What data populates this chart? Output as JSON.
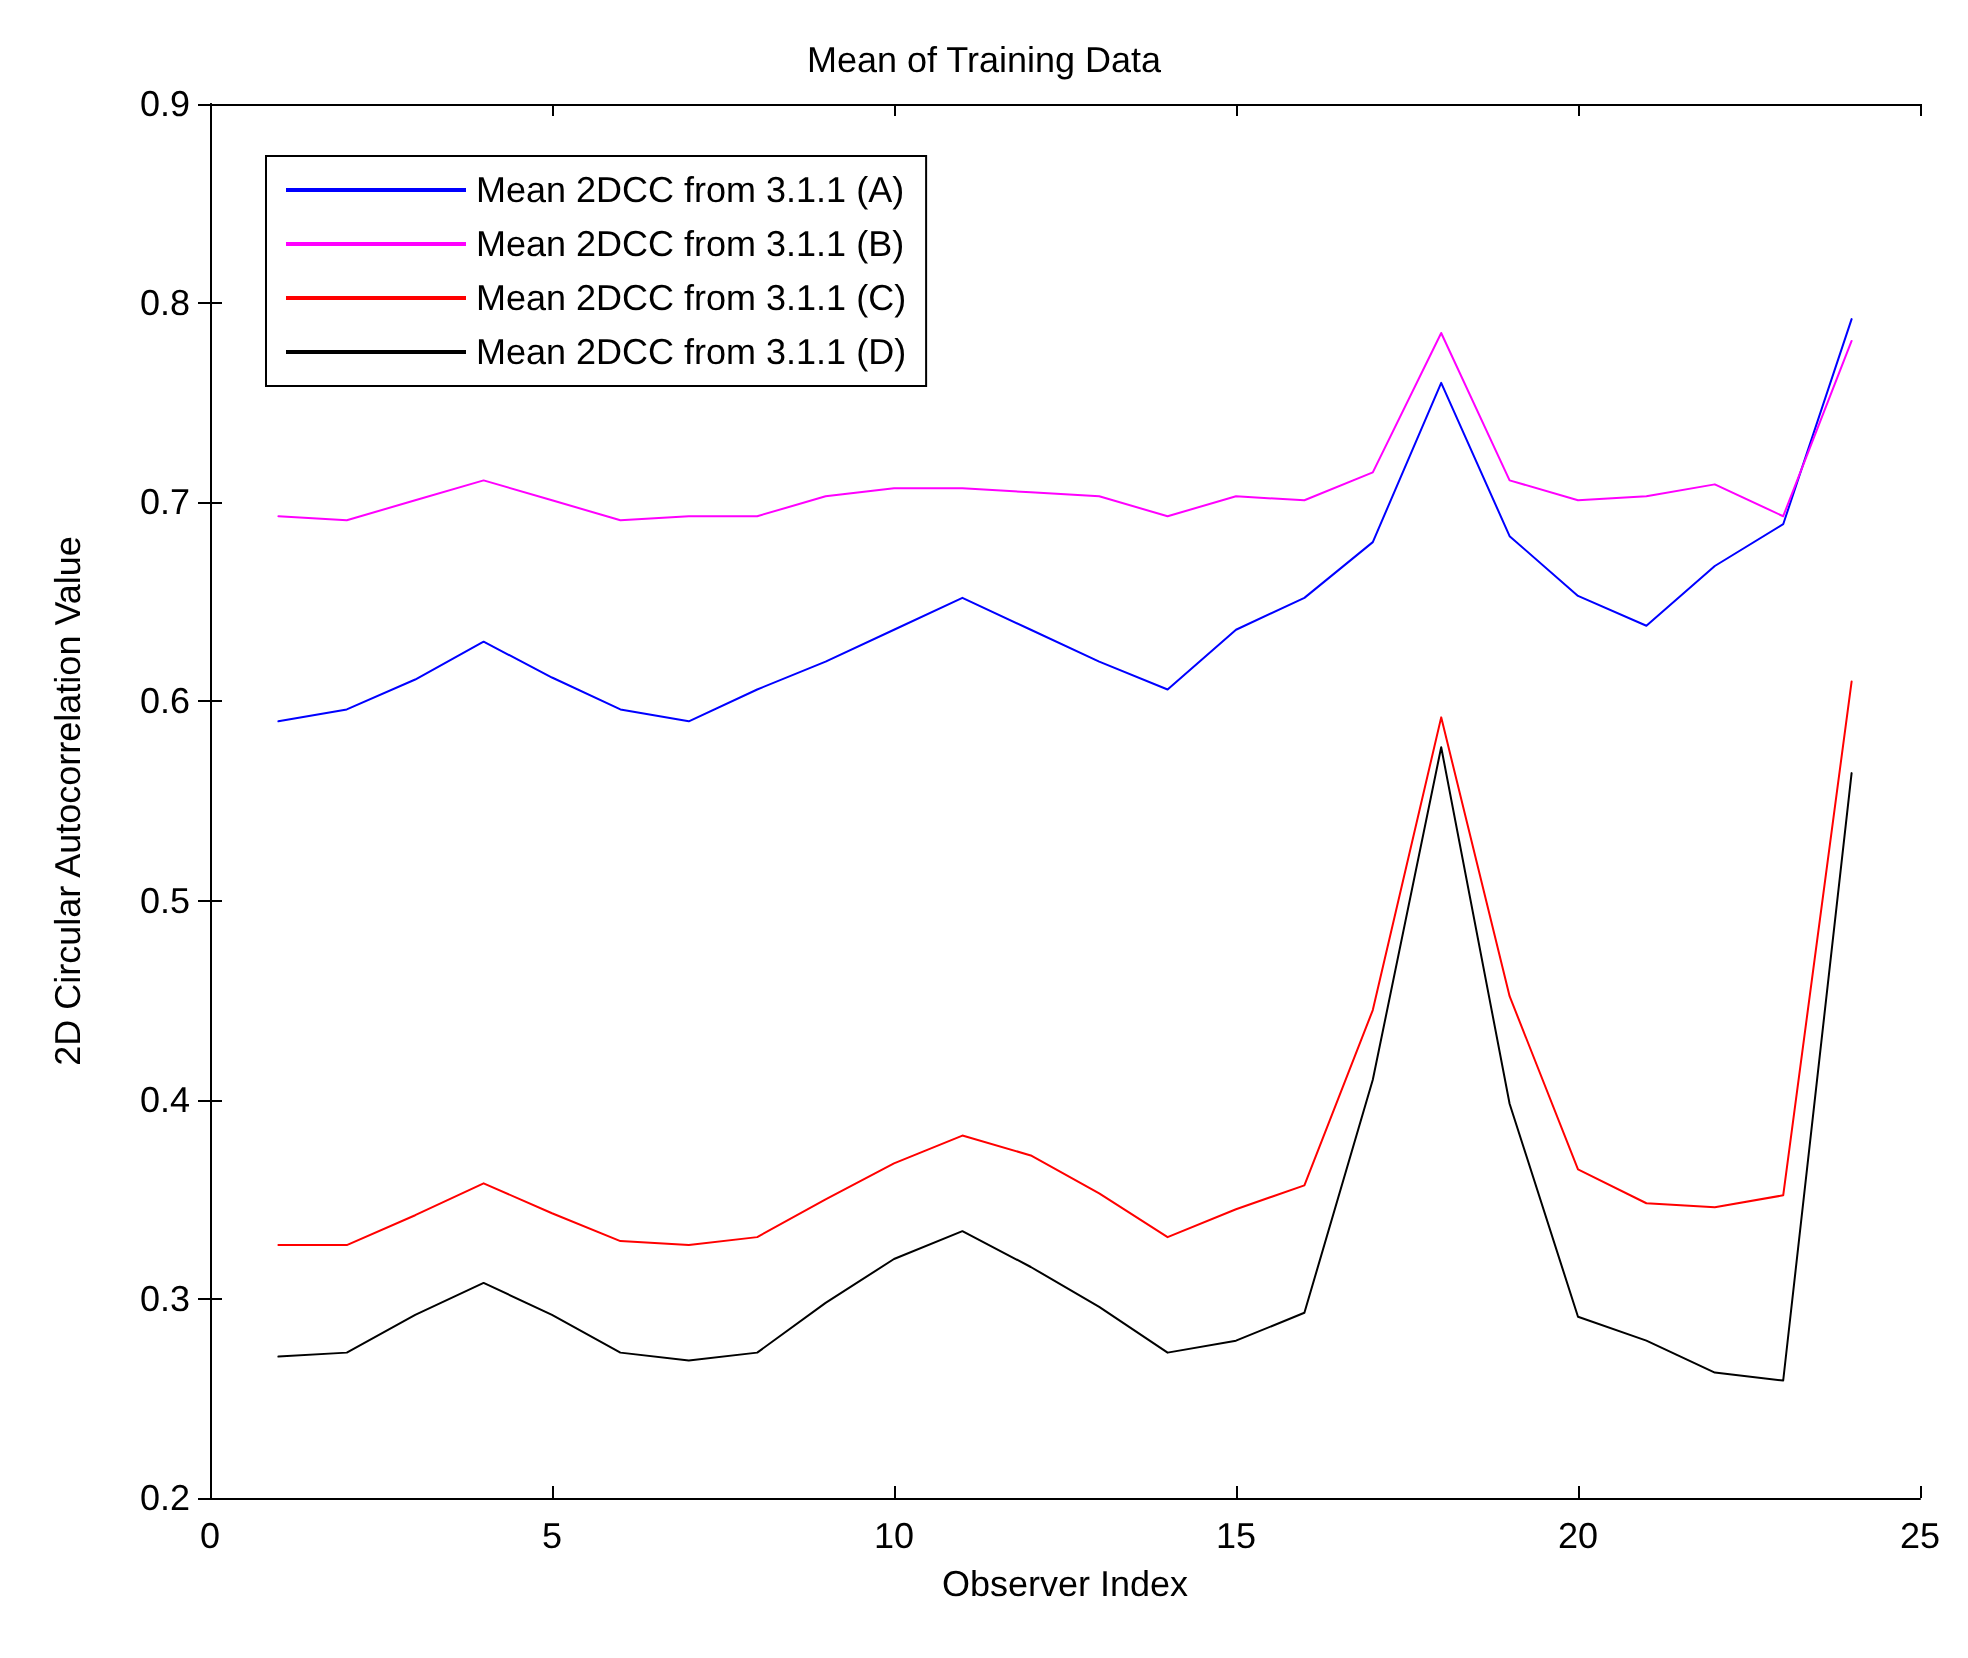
{
  "chart_data": {
    "type": "line",
    "title": "Mean of Training Data",
    "xlabel": "Observer Index",
    "ylabel": "2D Circular Autocorrelation Value",
    "x": [
      1,
      2,
      3,
      4,
      5,
      6,
      7,
      8,
      9,
      10,
      11,
      12,
      13,
      14,
      15,
      16,
      17,
      18,
      19,
      20,
      21,
      22,
      23,
      24
    ],
    "xlim": [
      0,
      25
    ],
    "xticks": [
      0,
      5,
      10,
      15,
      20,
      25
    ],
    "ylim": [
      0.2,
      0.9
    ],
    "yticks": [
      0.2,
      0.3,
      0.4,
      0.5,
      0.6,
      0.7,
      0.8,
      0.9
    ],
    "grid": false,
    "legend": "top left",
    "marker": "none",
    "line_style": "solid",
    "series": [
      {
        "name": "Mean 2DCC from 3.1.1 (A)",
        "color": "#0000ff",
        "values": [
          0.59,
          0.596,
          0.611,
          0.63,
          0.612,
          0.596,
          0.59,
          0.606,
          0.62,
          0.636,
          0.652,
          0.636,
          0.62,
          0.606,
          0.636,
          0.652,
          0.68,
          0.76,
          0.683,
          0.653,
          0.638,
          0.668,
          0.689,
          0.792
        ]
      },
      {
        "name": "Mean 2DCC from 3.1.1 (B)",
        "color": "#ff00ff",
        "values": [
          0.693,
          0.691,
          0.701,
          0.711,
          0.701,
          0.691,
          0.693,
          0.693,
          0.703,
          0.707,
          0.707,
          0.705,
          0.703,
          0.693,
          0.703,
          0.701,
          0.715,
          0.785,
          0.711,
          0.701,
          0.703,
          0.709,
          0.693,
          0.781
        ]
      },
      {
        "name": "Mean 2DCC from 3.1.1 (C)",
        "color": "#ff0000",
        "values": [
          0.327,
          0.327,
          0.342,
          0.358,
          0.343,
          0.329,
          0.327,
          0.331,
          0.35,
          0.368,
          0.382,
          0.372,
          0.353,
          0.331,
          0.345,
          0.357,
          0.445,
          0.592,
          0.452,
          0.365,
          0.348,
          0.346,
          0.352,
          0.61
        ]
      },
      {
        "name": "Mean 2DCC from 3.1.1 (D)",
        "color": "#000000",
        "values": [
          0.271,
          0.273,
          0.292,
          0.308,
          0.292,
          0.273,
          0.269,
          0.273,
          0.298,
          0.32,
          0.334,
          0.316,
          0.296,
          0.273,
          0.279,
          0.293,
          0.41,
          0.577,
          0.398,
          0.291,
          0.279,
          0.263,
          0.259,
          0.564
        ]
      }
    ]
  }
}
